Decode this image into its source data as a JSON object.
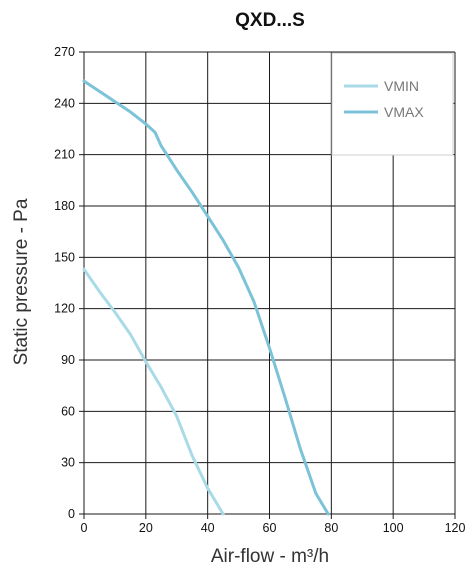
{
  "chart_data": {
    "type": "line",
    "title": "QXD...S",
    "xlabel": "Air-flow - m³/h",
    "ylabel": "Static pressure - Pa",
    "xlim": [
      0,
      120
    ],
    "ylim": [
      0,
      270
    ],
    "xticks": [
      0,
      20,
      40,
      60,
      80,
      100,
      120
    ],
    "yticks": [
      0,
      30,
      60,
      90,
      120,
      150,
      180,
      210,
      240,
      270
    ],
    "grid": true,
    "legend_position": "top-right",
    "series": [
      {
        "name": "VMIN",
        "color": "#a9dbe7",
        "points": [
          [
            0,
            143
          ],
          [
            5,
            130
          ],
          [
            10,
            118
          ],
          [
            15,
            105
          ],
          [
            20,
            89
          ],
          [
            25,
            74
          ],
          [
            30,
            57
          ],
          [
            35,
            34
          ],
          [
            40,
            15
          ],
          [
            45,
            0
          ]
        ]
      },
      {
        "name": "VMAX",
        "color": "#7cc2d8",
        "points": [
          [
            0,
            253
          ],
          [
            5,
            247
          ],
          [
            10,
            241
          ],
          [
            15,
            235
          ],
          [
            20,
            228
          ],
          [
            23,
            223
          ],
          [
            25,
            215
          ],
          [
            30,
            201
          ],
          [
            35,
            188
          ],
          [
            40,
            174
          ],
          [
            45,
            160
          ],
          [
            50,
            144
          ],
          [
            55,
            124
          ],
          [
            60,
            97
          ],
          [
            65,
            68
          ],
          [
            70,
            38
          ],
          [
            75,
            12
          ],
          [
            79,
            0
          ]
        ]
      }
    ]
  }
}
